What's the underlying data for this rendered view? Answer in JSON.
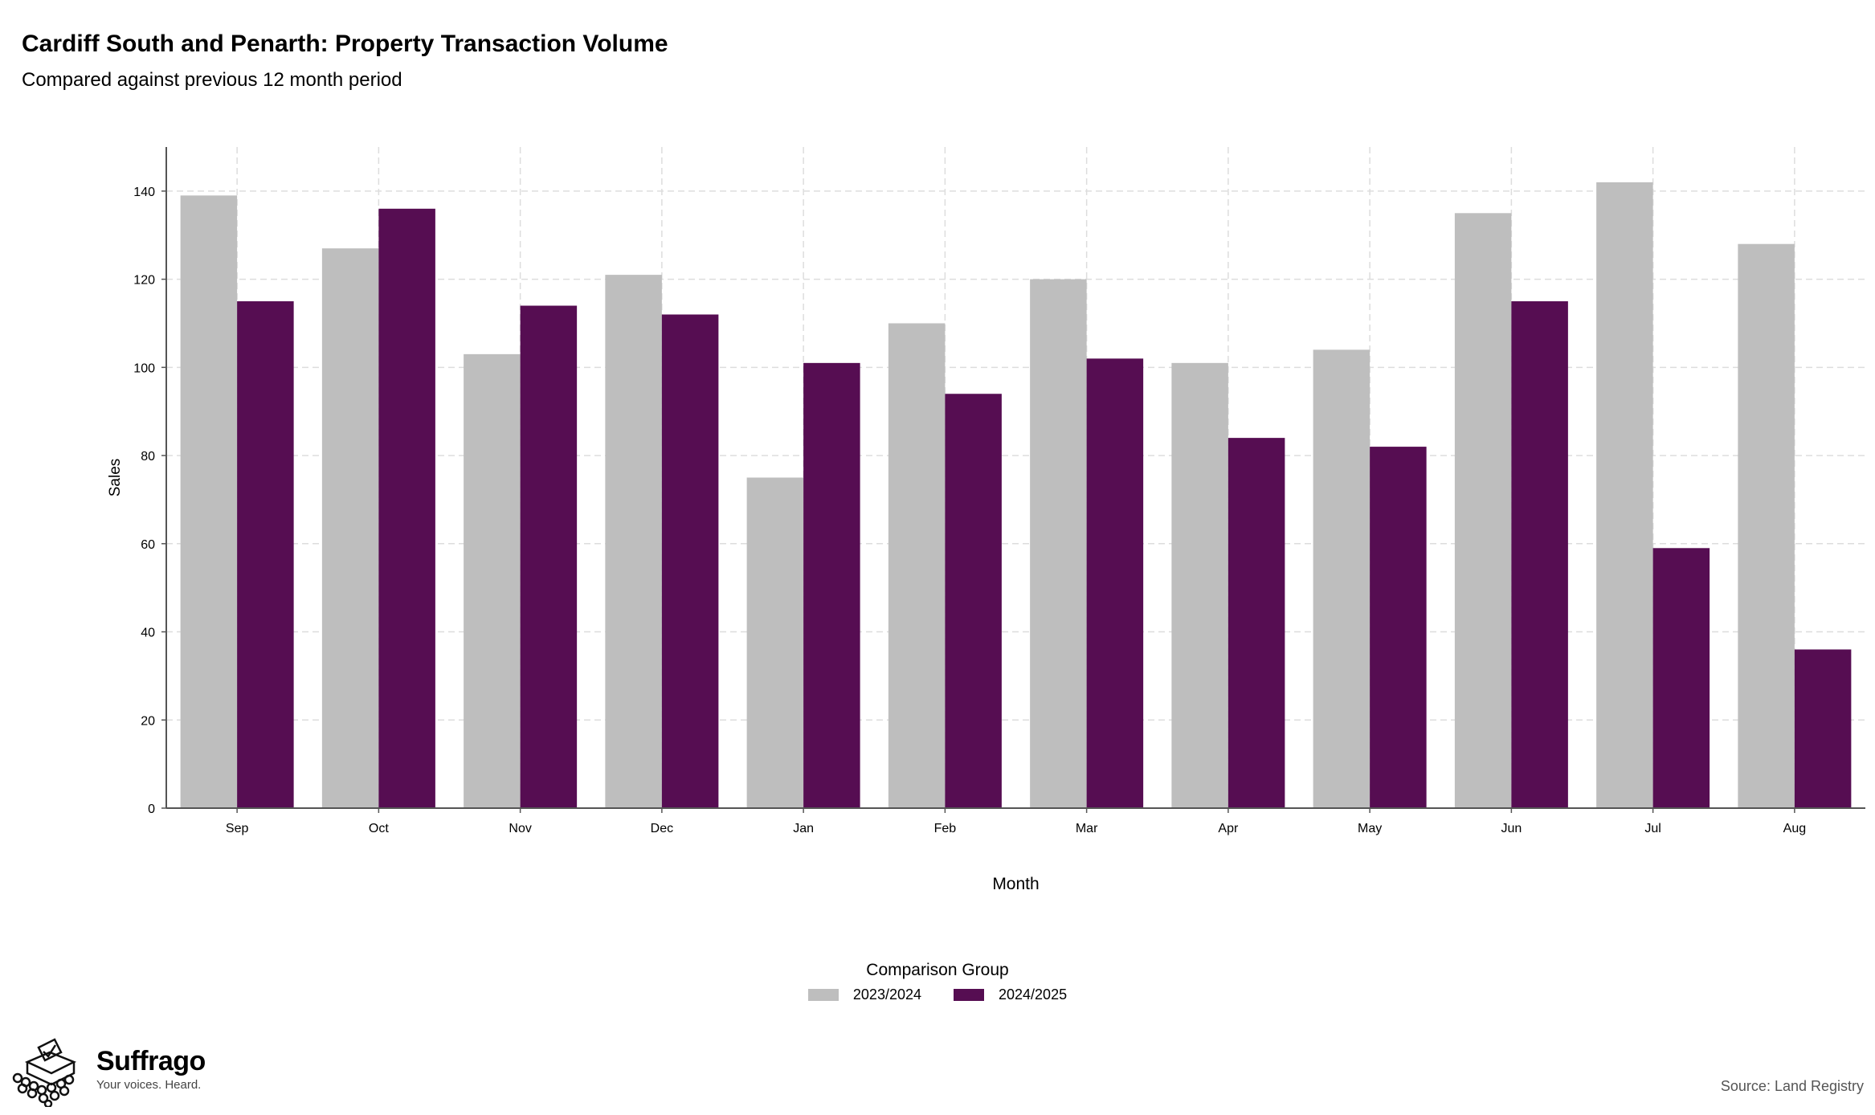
{
  "chart_data": {
    "type": "bar",
    "title": "Cardiff South and Penarth: Property Transaction Volume",
    "subtitle": "Compared against previous 12 month period",
    "xlabel": "Month",
    "ylabel": "Sales",
    "ylim": [
      0,
      150
    ],
    "yticks": [
      0,
      20,
      40,
      60,
      80,
      100,
      120,
      140
    ],
    "grid": true,
    "legend_title": "Comparison Group",
    "legend_position": "bottom",
    "categories": [
      "Sep",
      "Oct",
      "Nov",
      "Dec",
      "Jan",
      "Feb",
      "Mar",
      "Apr",
      "May",
      "Jun",
      "Jul",
      "Aug"
    ],
    "series": [
      {
        "name": "2023/2024",
        "color": "#bebebe",
        "values": [
          139,
          127,
          103,
          121,
          75,
          110,
          120,
          101,
          104,
          135,
          142,
          128
        ]
      },
      {
        "name": "2024/2025",
        "color": "#560d52",
        "values": [
          115,
          136,
          114,
          112,
          101,
          94,
          102,
          84,
          82,
          115,
          59,
          36
        ]
      }
    ],
    "source": "Source: Land Registry"
  },
  "brand": {
    "name": "Suffrago",
    "tagline": "Your voices. Heard.",
    "logo_icon": "ballot-box-crowd-icon"
  }
}
